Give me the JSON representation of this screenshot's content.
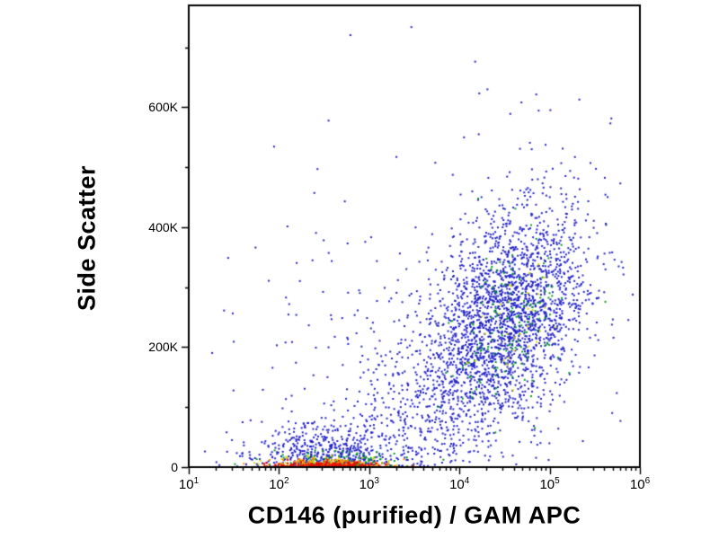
{
  "rng_seed": 7,
  "chart_data": {
    "type": "scatter",
    "title": "",
    "xlabel": "CD146 (purified) / GAM APC",
    "ylabel": "Side Scatter",
    "x_scale": "log",
    "x_range": [
      10,
      1000000
    ],
    "y_range": [
      0,
      770000
    ],
    "grid": false,
    "legend": "none",
    "axis_color": "#000000",
    "background_color": "#ffffff",
    "point_shape": "square",
    "point_size": 2,
    "x_ticks": [
      {
        "base": "10",
        "exp": "1",
        "value": 10
      },
      {
        "base": "10",
        "exp": "2",
        "value": 100
      },
      {
        "base": "10",
        "exp": "3",
        "value": 1000
      },
      {
        "base": "10",
        "exp": "4",
        "value": 10000
      },
      {
        "base": "10",
        "exp": "5",
        "value": 100000
      },
      {
        "base": "10",
        "exp": "6",
        "value": 1000000
      }
    ],
    "y_ticks": [
      {
        "label": "0",
        "value": 0
      },
      {
        "label": "200K",
        "value": 200000
      },
      {
        "label": "400K",
        "value": 400000
      },
      {
        "label": "600K",
        "value": 600000
      }
    ],
    "clusters": [
      {
        "name": "diffuse-background-blue",
        "color": "#2424c8",
        "n": 380,
        "logx_mean": 3.7,
        "logx_sd": 1.05,
        "y_mean": 190000,
        "y_sd": 175000,
        "xy_corr": 0.2,
        "reflect_y": false
      },
      {
        "name": "main-population-blue",
        "color": "#2424c8",
        "n": 2300,
        "logx_mean": 4.5,
        "logx_sd": 0.46,
        "y_mean": 250000,
        "y_sd": 95000,
        "xy_corr": 0.4,
        "reflect_y": false
      },
      {
        "name": "bridge-population-blue",
        "color": "#2424c8",
        "n": 260,
        "logx_mean": 3.5,
        "logx_sd": 0.45,
        "y_mean": 90000,
        "y_sd": 70000,
        "xy_corr": 0.3,
        "reflect_y": true
      },
      {
        "name": "debris-population-blue",
        "color": "#2424c8",
        "n": 560,
        "logx_mean": 2.55,
        "logx_sd": 0.42,
        "y_mean": 18000,
        "y_sd": 26000,
        "xy_corr": 0.0,
        "reflect_y": true
      },
      {
        "name": "main-core-green",
        "color": "#00a020",
        "n": 140,
        "logx_mean": 4.55,
        "logx_sd": 0.3,
        "y_mean": 240000,
        "y_sd": 70000,
        "xy_corr": 0.3,
        "reflect_y": false
      },
      {
        "name": "main-core-yellow",
        "color": "#d8d800",
        "n": 30,
        "logx_mean": 4.6,
        "logx_sd": 0.22,
        "y_mean": 235000,
        "y_sd": 50000,
        "xy_corr": 0.3,
        "reflect_y": false
      },
      {
        "name": "debris-band-green",
        "color": "#00a020",
        "n": 110,
        "logx_mean": 2.75,
        "logx_sd": 0.4,
        "y_mean": 9000,
        "y_sd": 9000,
        "xy_corr": 0.0,
        "reflect_y": true
      },
      {
        "name": "debris-band-yellow",
        "color": "#d8d800",
        "n": 95,
        "logx_mean": 2.65,
        "logx_sd": 0.35,
        "y_mean": 6000,
        "y_sd": 6500,
        "xy_corr": 0.0,
        "reflect_y": true
      },
      {
        "name": "debris-band-orange",
        "color": "#ff8800",
        "n": 140,
        "logx_mean": 2.6,
        "logx_sd": 0.33,
        "y_mean": 4500,
        "y_sd": 4500,
        "xy_corr": 0.0,
        "reflect_y": true
      },
      {
        "name": "debris-band-red",
        "color": "#e61000",
        "n": 250,
        "logx_mean": 2.55,
        "logx_sd": 0.3,
        "y_mean": 2500,
        "y_sd": 2800,
        "xy_corr": 0.0,
        "reflect_y": true
      }
    ]
  }
}
